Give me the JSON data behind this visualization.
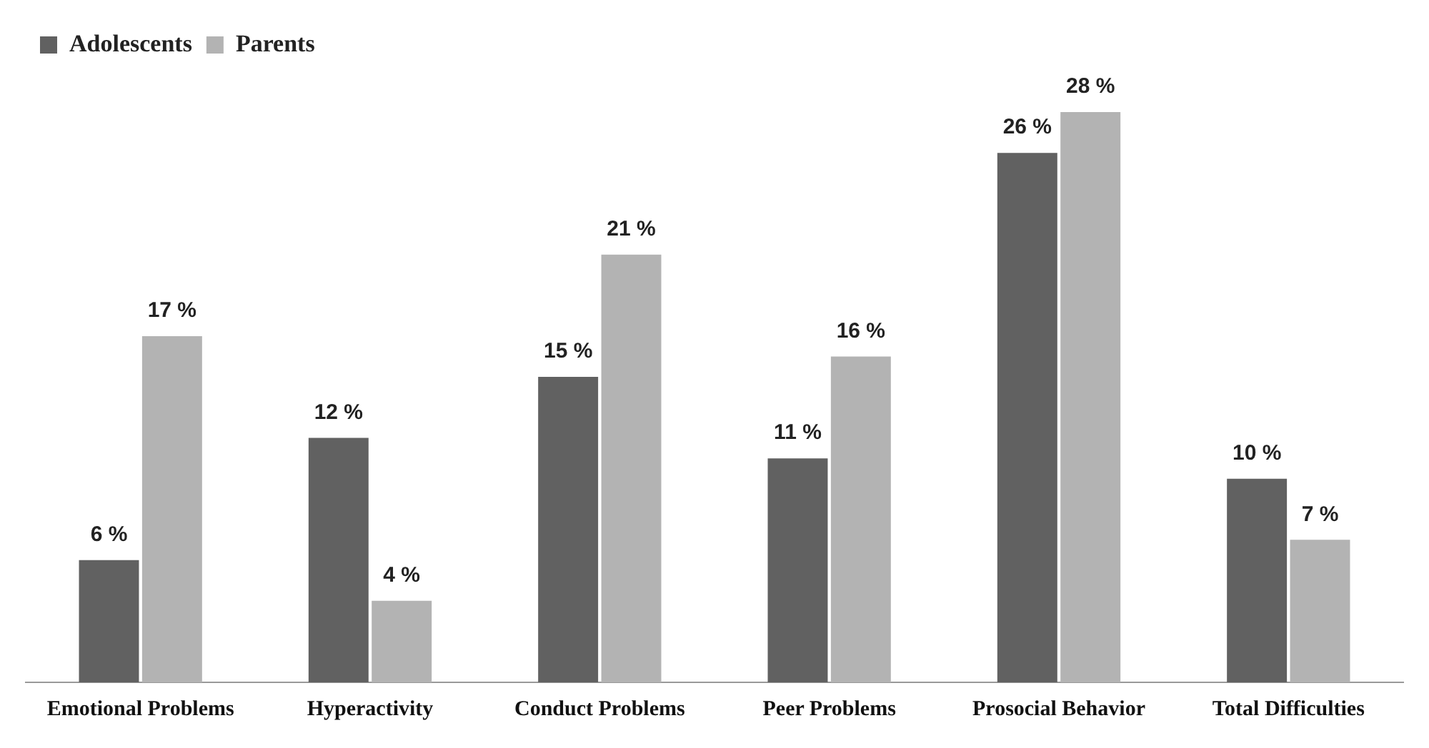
{
  "chart_data": {
    "type": "bar",
    "categories": [
      "Emotional Problems",
      "Hyperactivity",
      "Conduct Problems",
      "Peer Problems",
      "Prosocial Behavior",
      "Total Difficulties"
    ],
    "series": [
      {
        "name": "Adolescents",
        "color": "#616161",
        "values": [
          6,
          12,
          15,
          11,
          26,
          10
        ],
        "value_labels": [
          "6 %",
          "12 %",
          "15 %",
          "11 %",
          "26 %",
          "10 %"
        ]
      },
      {
        "name": "Parents",
        "color": "#b3b3b3",
        "values": [
          17,
          4,
          21,
          16,
          28,
          7
        ],
        "value_labels": [
          "17 %",
          "4 %",
          "21 %",
          "16 %",
          "28 %",
          "7 %"
        ]
      }
    ],
    "legend": "top left"
  }
}
